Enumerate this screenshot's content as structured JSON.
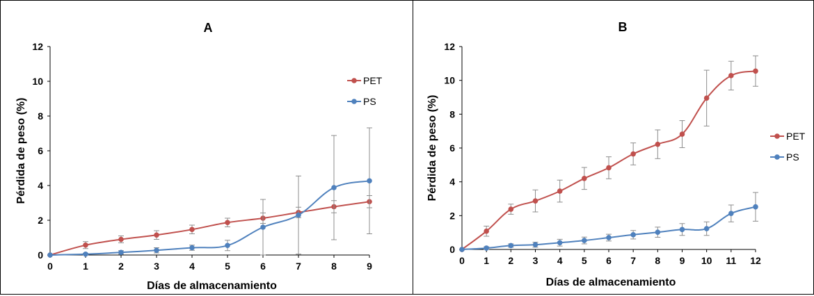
{
  "colors": {
    "PET": "#c0504d",
    "PS": "#4f81bd",
    "axis": "#000000",
    "errorbar": "#8c8c8c"
  },
  "chart_data": [
    {
      "type": "line",
      "title": "A",
      "xlabel": "Días de almacenamiento",
      "ylabel": "Pérdida de peso (%)",
      "x": [
        0,
        1,
        2,
        3,
        4,
        5,
        6,
        7,
        8,
        9
      ],
      "xlim": [
        0,
        9
      ],
      "ylim": [
        0,
        12
      ],
      "yticks": [
        0,
        2,
        4,
        6,
        8,
        10,
        12
      ],
      "grid": false,
      "legend_position": "top-right",
      "series": [
        {
          "name": "PET",
          "values": [
            0,
            0.57,
            0.9,
            1.15,
            1.47,
            1.87,
            2.12,
            2.45,
            2.78,
            3.07
          ],
          "error": [
            0,
            0.2,
            0.2,
            0.25,
            0.25,
            0.25,
            0.3,
            0.3,
            0.35,
            0.35
          ]
        },
        {
          "name": "PS",
          "values": [
            0,
            0.05,
            0.15,
            0.27,
            0.42,
            0.55,
            1.6,
            2.3,
            3.88,
            4.27
          ],
          "error": [
            0,
            0.05,
            0.1,
            0.15,
            0.15,
            0.3,
            1.6,
            2.25,
            3.0,
            3.05
          ]
        }
      ]
    },
    {
      "type": "line",
      "title": "B",
      "xlabel": "Días de almacenamiento",
      "ylabel": "Pérdida de peso (%)",
      "x": [
        0,
        1,
        2,
        3,
        4,
        5,
        6,
        7,
        8,
        9,
        10,
        11,
        12
      ],
      "xlim": [
        0,
        12
      ],
      "ylim": [
        0,
        12
      ],
      "yticks": [
        0,
        2,
        4,
        6,
        8,
        10,
        12
      ],
      "grid": false,
      "legend_position": "right",
      "series": [
        {
          "name": "PET",
          "values": [
            0,
            1.08,
            2.38,
            2.87,
            3.45,
            4.2,
            4.83,
            5.65,
            6.22,
            6.82,
            8.95,
            10.28,
            10.55
          ],
          "error": [
            0,
            0.3,
            0.3,
            0.65,
            0.65,
            0.65,
            0.65,
            0.65,
            0.85,
            0.8,
            1.65,
            0.85,
            0.9
          ]
        },
        {
          "name": "PS",
          "values": [
            0,
            0.08,
            0.23,
            0.28,
            0.4,
            0.53,
            0.7,
            0.87,
            1.02,
            1.18,
            1.23,
            2.13,
            2.52
          ],
          "error": [
            0,
            0.08,
            0.1,
            0.15,
            0.2,
            0.2,
            0.2,
            0.25,
            0.3,
            0.35,
            0.4,
            0.5,
            0.85
          ]
        }
      ]
    }
  ]
}
